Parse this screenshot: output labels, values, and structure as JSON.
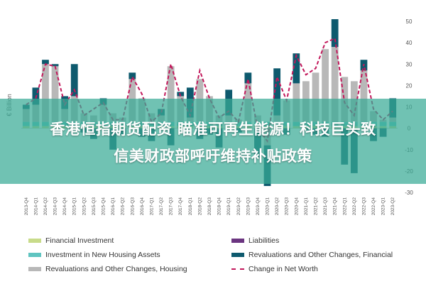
{
  "chart_data": {
    "type": "bar",
    "ylabel": "€ Billion",
    "ylim": [
      -30,
      50
    ],
    "yticks": [
      50,
      40,
      30,
      20,
      10,
      0,
      -10,
      -20,
      -30
    ],
    "grid": false,
    "legend_position": "bottom",
    "categories": [
      "2013-Q4",
      "2014-Q1",
      "2014-Q2",
      "2014-Q3",
      "2014-Q4",
      "2015-Q1",
      "2015-Q2",
      "2015-Q3",
      "2015-Q4",
      "2016-Q1",
      "2016-Q2",
      "2016-Q3",
      "2016-Q4",
      "2017-Q1",
      "2017-Q2",
      "2017-Q3",
      "2017-Q4",
      "2018-Q1",
      "2018-Q2",
      "2018-Q3",
      "2018-Q4",
      "2019-Q1",
      "2019-Q2",
      "2019-Q3",
      "2019-Q4",
      "2020-Q1",
      "2020-Q2",
      "2020-Q3",
      "2020-Q4",
      "2021-Q1",
      "2021-Q2",
      "2021-Q3",
      "2021-Q4",
      "2022-Q1",
      "2022-Q2",
      "2022-Q3",
      "2022-Q4",
      "2023-Q1",
      "2023-Q2"
    ],
    "series": [
      {
        "name": "Financial Investment",
        "color": "#c8db8a",
        "kind": "bar",
        "values": [
          1,
          1,
          1,
          1,
          1,
          1,
          1,
          1,
          1,
          1,
          1,
          1,
          1,
          1,
          1,
          1,
          1,
          1,
          1,
          1,
          1,
          1,
          1,
          1,
          1,
          1,
          1,
          1,
          1,
          1,
          1,
          1,
          1,
          1,
          1,
          1,
          1,
          1,
          1
        ]
      },
      {
        "name": "Investment in New Housing Assets",
        "color": "#5fc4c0",
        "kind": "bar",
        "values": [
          2,
          2,
          2,
          2,
          2,
          2,
          2,
          2,
          2,
          2,
          2,
          2,
          2,
          2,
          2,
          2,
          2,
          2,
          2,
          2,
          2,
          2,
          2,
          2,
          2,
          2,
          2,
          2,
          2,
          2,
          2,
          2,
          2,
          2,
          2,
          2,
          2,
          2,
          2
        ]
      },
      {
        "name": "Revaluations and Other Changes, Housing",
        "color": "#b8b8b8",
        "kind": "bar",
        "values": [
          6,
          8,
          27,
          26,
          6,
          12,
          4,
          3,
          8,
          4,
          2,
          20,
          11,
          4,
          3,
          26,
          12,
          2,
          20,
          12,
          3,
          3,
          1,
          18,
          3,
          -8,
          3,
          10,
          18,
          19,
          23,
          34,
          35,
          21,
          19,
          24,
          5,
          1,
          2
        ]
      },
      {
        "name": "Liabilities",
        "color": "#6b3580",
        "kind": "bar",
        "values": [
          0,
          0,
          0,
          0,
          0,
          0,
          0,
          0,
          0,
          0,
          0,
          0,
          0,
          0,
          0,
          0,
          0,
          0,
          0,
          0,
          0,
          0,
          0,
          0,
          0,
          0,
          0,
          0,
          0,
          0,
          0,
          0,
          0,
          0,
          0,
          0,
          0,
          0,
          0
        ]
      },
      {
        "name": "Revaluations and Other Changes, Financial",
        "color": "#0e5a6e",
        "kind": "bar",
        "values": [
          2,
          8,
          2,
          1,
          6,
          15,
          -2,
          -5,
          3,
          -10,
          -3,
          3,
          -4,
          -6,
          3,
          -8,
          2,
          14,
          -5,
          -3,
          -9,
          12,
          -2,
          5,
          -14,
          -19,
          22,
          -3,
          14,
          -1,
          -3,
          -4,
          13,
          -17,
          -21,
          5,
          -6,
          -4,
          9
        ]
      },
      {
        "name": "Change in Net Worth",
        "color": "#c2185b",
        "kind": "line",
        "values": [
          11,
          14,
          30,
          29,
          11,
          18,
          6,
          9,
          12,
          4,
          4,
          24,
          16,
          3,
          7,
          30,
          15,
          6,
          27,
          14,
          5,
          8,
          3,
          23,
          0,
          -6,
          24,
          13,
          34,
          25,
          28,
          40,
          42,
          12,
          6,
          30,
          9,
          4,
          8
        ]
      }
    ]
  }
}
